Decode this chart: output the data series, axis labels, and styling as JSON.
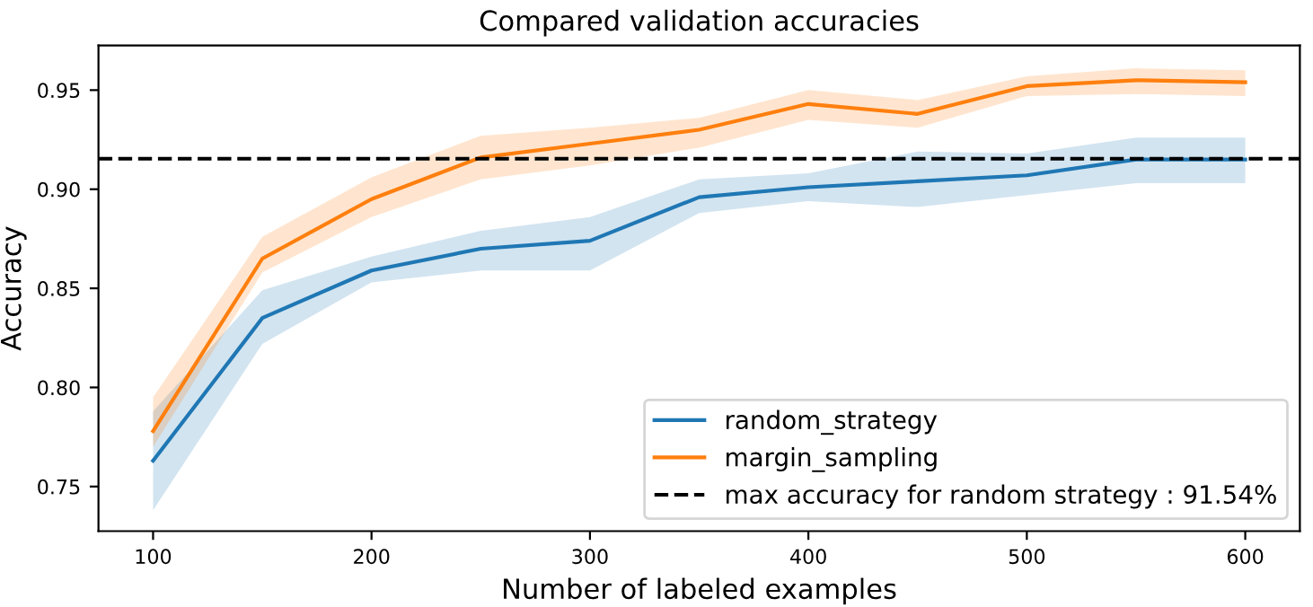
{
  "chart_data": {
    "type": "line",
    "title": "Compared validation accuracies",
    "xlabel": "Number of labeled examples",
    "ylabel": "Accuracy",
    "x": [
      100,
      150,
      200,
      250,
      300,
      350,
      400,
      450,
      500,
      550,
      600
    ],
    "series": [
      {
        "name": "random_strategy",
        "color": "#1f77b4",
        "values": [
          0.763,
          0.835,
          0.859,
          0.87,
          0.874,
          0.896,
          0.901,
          0.904,
          0.907,
          0.915,
          0.915
        ],
        "lower": [
          0.738,
          0.822,
          0.853,
          0.859,
          0.859,
          0.888,
          0.894,
          0.891,
          0.897,
          0.903,
          0.903
        ],
        "upper": [
          0.788,
          0.849,
          0.866,
          0.879,
          0.886,
          0.905,
          0.908,
          0.919,
          0.918,
          0.926,
          0.926
        ]
      },
      {
        "name": "margin_sampling",
        "color": "#ff7f0e",
        "values": [
          0.778,
          0.865,
          0.895,
          0.916,
          0.923,
          0.93,
          0.943,
          0.938,
          0.952,
          0.955,
          0.954
        ],
        "lower": [
          0.77,
          0.858,
          0.886,
          0.905,
          0.912,
          0.921,
          0.935,
          0.931,
          0.947,
          0.948,
          0.947
        ],
        "upper": [
          0.795,
          0.876,
          0.906,
          0.927,
          0.931,
          0.936,
          0.95,
          0.945,
          0.957,
          0.961,
          0.96
        ]
      }
    ],
    "ref_lines": [
      {
        "axis": "y",
        "value": 0.9154,
        "label": "max accuracy for random strategy : 91.54%",
        "color": "#000000",
        "line_style": "dashed"
      }
    ],
    "xlim": [
      75,
      625
    ],
    "ylim": [
      0.7275,
      0.9725
    ],
    "xticks": [
      100,
      200,
      300,
      400,
      500,
      600
    ],
    "yticks": [
      {
        "value": 0.75,
        "label": "0.75"
      },
      {
        "value": 0.8,
        "label": "0.80"
      },
      {
        "value": 0.85,
        "label": "0.85"
      },
      {
        "value": 0.9,
        "label": "0.90"
      },
      {
        "value": 0.95,
        "label": "0.95"
      }
    ],
    "grid": false,
    "legend": "lower right",
    "marker": "none",
    "line_style": "solid"
  }
}
